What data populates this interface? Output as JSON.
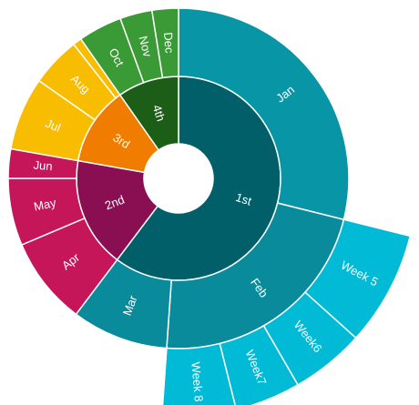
{
  "chart_data": {
    "type": "sunburst",
    "title": "",
    "colors": {
      "q1": "#005f69",
      "jan": "#0896a6",
      "feb": "#0a8b9c",
      "mar": "#0a8b9c",
      "weeks": "#00bad6",
      "q2": "#890f52",
      "apr": "#c6165a",
      "may": "#c6165a",
      "jun": "#c6165a",
      "q3": "#f07d00",
      "jul": "#f8bc00",
      "aug": "#f8bc00",
      "sep": "#f8bc00",
      "q4": "#1c5e17",
      "oct": "#3a9a35",
      "nov": "#3a9a35",
      "dec": "#3a9a35"
    },
    "rings": [
      {
        "level": "quarter",
        "segments": [
          {
            "label": "1st",
            "value": 217,
            "color": "q1"
          },
          {
            "label": "2nd",
            "value": 63,
            "color": "q2"
          },
          {
            "label": "3rd",
            "value": 45,
            "color": "q3"
          },
          {
            "label": "4th",
            "value": 35,
            "color": "q4"
          }
        ]
      },
      {
        "level": "month",
        "segments": [
          {
            "label": "Jan",
            "value": 104,
            "color": "jan"
          },
          {
            "label": "Feb",
            "value": 80,
            "color": "feb"
          },
          {
            "label": "Mar",
            "value": 33,
            "color": "mar"
          },
          {
            "label": "Apr",
            "value": 30,
            "color": "apr"
          },
          {
            "label": "May",
            "value": 23,
            "color": "may"
          },
          {
            "label": "Jun",
            "value": 10,
            "color": "jun"
          },
          {
            "label": "Jul",
            "value": 25,
            "color": "jul"
          },
          {
            "label": "Aug",
            "value": 17,
            "color": "aug"
          },
          {
            "label": "",
            "value": 3,
            "color": "sep"
          },
          {
            "label": "Oct",
            "value": 15,
            "color": "oct"
          },
          {
            "label": "Nov",
            "value": 11,
            "color": "nov"
          },
          {
            "label": "Dec",
            "value": 9,
            "color": "dec"
          }
        ]
      },
      {
        "level": "week",
        "parent": "Feb",
        "segments": [
          {
            "label": "Week 5",
            "value": 28,
            "color": "weeks"
          },
          {
            "label": "Week6",
            "value": 18,
            "color": "weeks"
          },
          {
            "label": "Week7",
            "value": 16,
            "color": "weeks"
          },
          {
            "label": "Week 8",
            "value": 18,
            "color": "weeks"
          }
        ]
      }
    ]
  }
}
